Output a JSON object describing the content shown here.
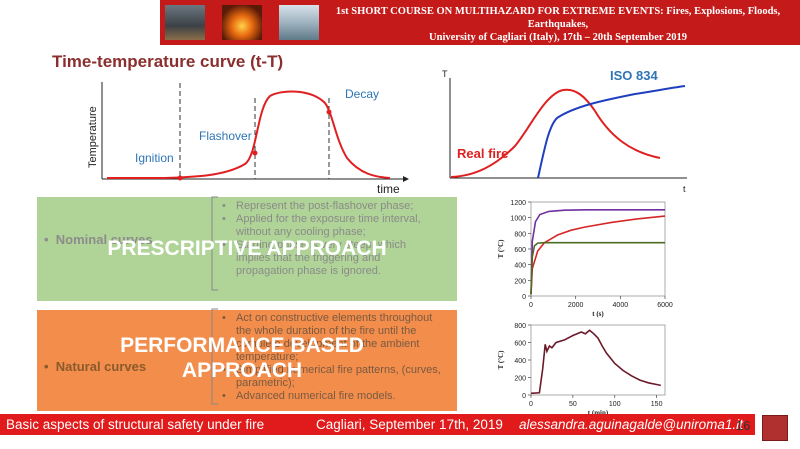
{
  "header": {
    "line1": "1st SHORT COURSE ON MULTIHAZARD FOR EXTREME EVENTS: Fires, Explosions, Floods, Earthquakes,",
    "line2": "University of Cagliari (Italy), 17th – 20th September 2019",
    "photos": [
      "volcano-photo",
      "fire-photo",
      "flood-photo"
    ]
  },
  "title": "Time-temperature curve (t-T)",
  "chart1": {
    "ylabel": "Temperature",
    "xlabel": "time",
    "labels": {
      "ignition": "Ignition",
      "flashover": "Flashover",
      "decay": "Decay"
    }
  },
  "chart2": {
    "ylabel": "T",
    "xlabel": "t",
    "iso_label": "ISO 834",
    "real_label": "Real fire"
  },
  "chart_data": [
    {
      "type": "line",
      "ylabel": "T (°C)",
      "xlabel": "t (s)",
      "xlim": [
        0,
        6000
      ],
      "ylim": [
        0,
        1200
      ],
      "xticks": [
        0,
        2000,
        4000,
        6000
      ],
      "yticks": [
        0,
        200,
        400,
        600,
        800,
        1000,
        1200
      ],
      "series": [
        {
          "color": "#7030a0",
          "x": [
            0,
            60,
            200,
            400,
            800,
            1500,
            2500,
            4000,
            6000
          ],
          "y": [
            20,
            700,
            950,
            1040,
            1080,
            1095,
            1100,
            1100,
            1100
          ]
        },
        {
          "color": "#d62728",
          "x": [
            0,
            60,
            300,
            600,
            1200,
            1800,
            2400,
            3600,
            4800,
            6000
          ],
          "y": [
            20,
            350,
            575,
            680,
            780,
            840,
            880,
            940,
            985,
            1020
          ]
        },
        {
          "color": "#4d6b22",
          "x": [
            0,
            60,
            150,
            300,
            600,
            1200,
            6000
          ],
          "y": [
            20,
            500,
            640,
            675,
            680,
            680,
            680
          ]
        }
      ]
    },
    {
      "type": "line",
      "ylabel": "T (°C)",
      "xlabel": "t (min)",
      "xlim": [
        0,
        160
      ],
      "ylim": [
        0,
        800
      ],
      "xticks": [
        0,
        50,
        100,
        150
      ],
      "yticks": [
        0,
        200,
        400,
        600,
        800
      ],
      "series": [
        {
          "color": "#6b1a2a",
          "x": [
            0,
            10,
            14,
            17,
            19,
            22,
            25,
            30,
            40,
            50,
            60,
            65,
            70,
            75,
            80,
            85,
            90,
            95,
            100,
            110,
            120,
            130,
            140,
            150,
            155
          ],
          "y": [
            20,
            25,
            300,
            580,
            500,
            560,
            540,
            600,
            630,
            680,
            720,
            700,
            740,
            700,
            650,
            560,
            480,
            420,
            360,
            280,
            220,
            170,
            140,
            120,
            110
          ]
        }
      ]
    }
  ],
  "green_box": {
    "overlay": "PRESCRIPTIVE APPROACH",
    "curve_name": "Nominal curves",
    "bullets": [
      "Represent the post-flashover phase;",
      "Applied for the exposure time interval, without any cooling phase;",
      "Starting phase is very steep, which implies that the triggering and propagation phase is ignored."
    ]
  },
  "orange_box": {
    "overlay_line1": "PERFORMANCE BASED",
    "overlay_line2": "APPROACH",
    "curve_name": "Natural curves",
    "bullets": [
      "Act on constructive elements throughout the whole duration of the fire until the complete development of the ambient temperature;",
      "Simplified numerical fire patterns, (curves, parametric);",
      "Advanced numerical fire models."
    ]
  },
  "footer": {
    "left": "Basic aspects of structural safety under fire",
    "middle": "Cagliari, September 17th, 2019",
    "right": "alessandra.aguinagalde@uniroma1.it",
    "page": "16"
  },
  "colors": {
    "header_red": "#c51a1a",
    "footer_red": "#e11b1b",
    "title": "#8b2e2e",
    "curve_red": "#e02020",
    "iso_blue": "#1f3fbf",
    "label_blue": "#2e75b6"
  }
}
